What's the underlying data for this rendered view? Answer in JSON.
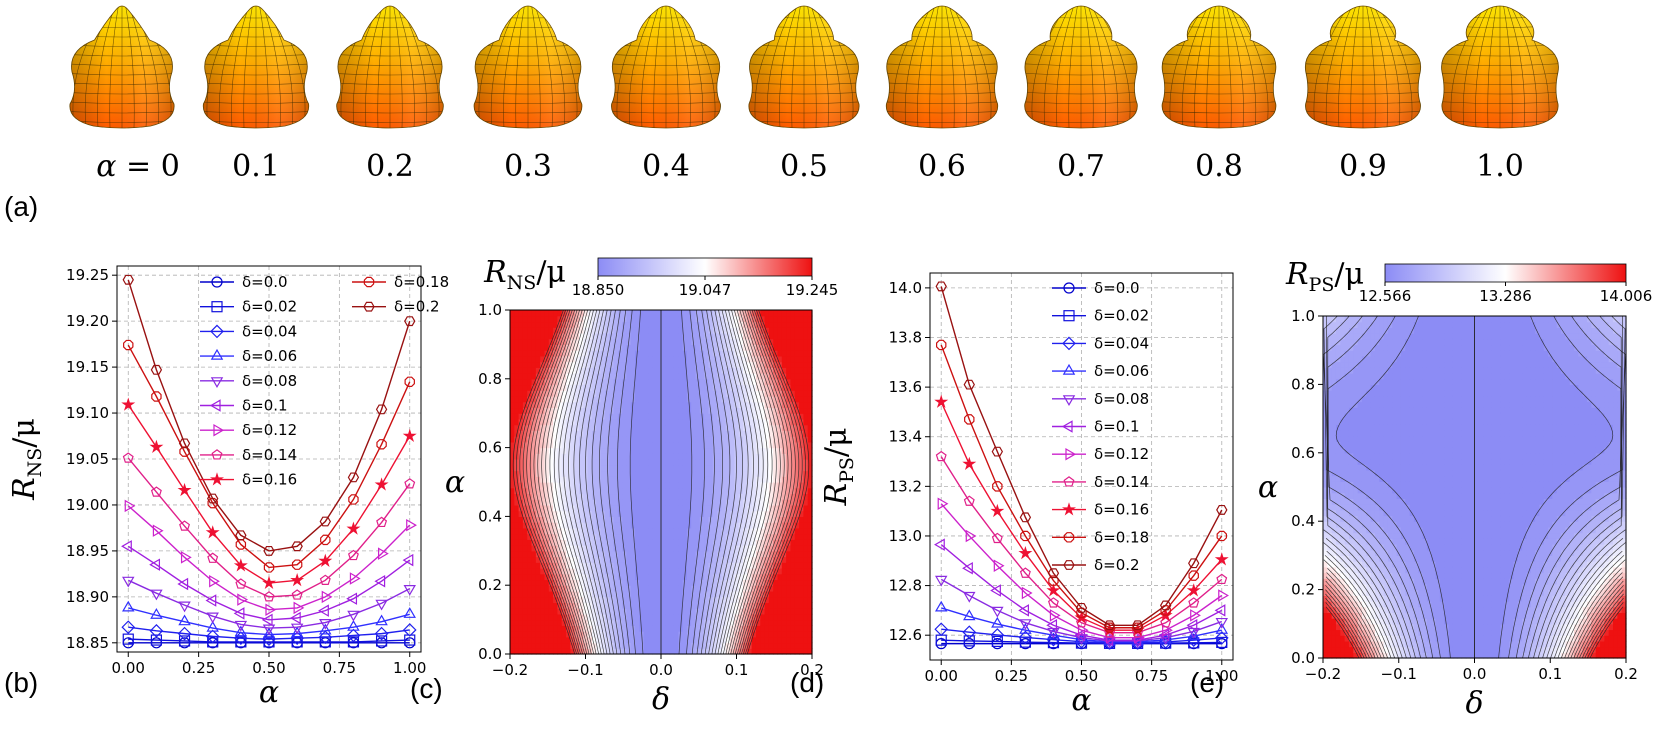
{
  "colors": {
    "shape_top": "#ffe000",
    "shape_mid": "#ffa000",
    "shape_bottom": "#ff5000",
    "map_low": "#8c8cf5",
    "map_mid": "#ffffff",
    "map_high": "#ee1111"
  },
  "shapes": {
    "alpha_prefix": "α = ",
    "labels": [
      "0",
      "0.1",
      "0.2",
      "0.3",
      "0.4",
      "0.5",
      "0.6",
      "0.7",
      "0.8",
      "0.9",
      "1.0"
    ]
  },
  "panel_labels": {
    "a": "(a)",
    "b": "(b)",
    "c": "(c)",
    "d": "(d)",
    "e": "(e)"
  },
  "chart_data": [
    {
      "id": "b",
      "type": "line",
      "xlabel": "α",
      "ylabel": "R_NS/μ",
      "xlim": [
        -0.04,
        1.04
      ],
      "ylim": [
        18.84,
        19.26
      ],
      "xticks": [
        "0.00",
        "0.25",
        "0.50",
        "0.75",
        "1.00"
      ],
      "yticks": [
        "18.85",
        "18.90",
        "18.95",
        "19.00",
        "19.05",
        "19.10",
        "19.15",
        "19.20",
        "19.25"
      ],
      "grid": true,
      "legend_position": "top-center",
      "x": [
        0,
        0.1,
        0.2,
        0.3,
        0.4,
        0.5,
        0.6,
        0.7,
        0.8,
        0.9,
        1.0
      ],
      "series": [
        {
          "name": "δ=0.0",
          "marker": "circle",
          "color": "#0000cc",
          "values": [
            18.85,
            18.85,
            18.85,
            18.85,
            18.85,
            18.85,
            18.85,
            18.85,
            18.85,
            18.85,
            18.85
          ]
        },
        {
          "name": "δ=0.02",
          "marker": "square",
          "color": "#1010dd",
          "values": [
            18.854,
            18.853,
            18.852,
            18.851,
            18.851,
            18.851,
            18.851,
            18.851,
            18.851,
            18.852,
            18.853
          ]
        },
        {
          "name": "δ=0.04",
          "marker": "diamond",
          "color": "#2020ee",
          "values": [
            18.867,
            18.863,
            18.86,
            18.857,
            18.855,
            18.854,
            18.855,
            18.856,
            18.858,
            18.86,
            18.864
          ]
        },
        {
          "name": "δ=0.06",
          "marker": "tri_up",
          "color": "#3030ff",
          "values": [
            18.888,
            18.88,
            18.873,
            18.866,
            18.861,
            18.859,
            18.86,
            18.863,
            18.867,
            18.873,
            18.881
          ]
        },
        {
          "name": "δ=0.08",
          "marker": "tri_down",
          "color": "#8a2be2",
          "values": [
            18.918,
            18.904,
            18.891,
            18.879,
            18.87,
            18.866,
            18.867,
            18.872,
            18.881,
            18.893,
            18.909
          ]
        },
        {
          "name": "δ=0.1",
          "marker": "tri_left",
          "color": "#a020e0",
          "values": [
            18.955,
            18.935,
            18.914,
            18.896,
            18.882,
            18.875,
            18.877,
            18.885,
            18.898,
            18.917,
            18.94
          ]
        },
        {
          "name": "δ=0.12",
          "marker": "tri_right",
          "color": "#cc22cc",
          "values": [
            18.999,
            18.972,
            18.943,
            18.917,
            18.897,
            18.886,
            18.888,
            18.9,
            18.92,
            18.947,
            18.978
          ]
        },
        {
          "name": "δ=0.14",
          "marker": "pentagon",
          "color": "#e0208a",
          "values": [
            19.051,
            19.014,
            18.977,
            18.942,
            18.914,
            18.9,
            18.902,
            18.918,
            18.945,
            18.981,
            19.023
          ]
        },
        {
          "name": "δ=0.16",
          "marker": "star",
          "color": "#ee1133",
          "values": [
            19.109,
            19.063,
            19.016,
            18.97,
            18.934,
            18.915,
            18.918,
            18.939,
            18.974,
            19.022,
            19.075
          ]
        },
        {
          "name": "δ=0.18",
          "marker": "octagon",
          "color": "#cc1111",
          "values": [
            19.174,
            19.118,
            19.058,
            19.002,
            18.957,
            18.932,
            18.935,
            18.962,
            19.006,
            19.066,
            19.134
          ]
        },
        {
          "name": "δ=0.2",
          "marker": "hexagon",
          "color": "#991111",
          "values": [
            19.245,
            19.147,
            19.067,
            19.007,
            18.967,
            18.95,
            18.955,
            18.982,
            19.03,
            19.104,
            19.2
          ]
        }
      ]
    },
    {
      "id": "c",
      "type": "heatmap",
      "title": "R_NS/μ",
      "xlabel": "δ",
      "ylabel": "α",
      "xlim": [
        -0.2,
        0.2
      ],
      "ylim": [
        0.0,
        1.0
      ],
      "xticks": [
        "−0.2",
        "−0.1",
        "0.0",
        "0.1",
        "0.2"
      ],
      "yticks": [
        "0.0",
        "0.2",
        "0.4",
        "0.6",
        "0.8",
        "1.0"
      ],
      "colorbar_ticks": [
        "18.850",
        "19.047",
        "19.245"
      ],
      "colorbar_range": [
        18.85,
        19.245
      ],
      "model": "ns"
    },
    {
      "id": "d",
      "type": "line",
      "xlabel": "α",
      "ylabel": "R_PS/μ",
      "xlim": [
        -0.04,
        1.04
      ],
      "ylim": [
        12.5,
        14.06
      ],
      "xticks": [
        "0.00",
        "0.25",
        "0.50",
        "0.75",
        "1.00"
      ],
      "yticks": [
        "12.6",
        "12.8",
        "13.0",
        "13.2",
        "13.4",
        "13.6",
        "13.8",
        "14.0"
      ],
      "grid": true,
      "legend_position": "top-right",
      "x": [
        0,
        0.1,
        0.2,
        0.3,
        0.4,
        0.5,
        0.6,
        0.7,
        0.8,
        0.9,
        1.0
      ],
      "series": [
        {
          "name": "δ=0.0",
          "marker": "circle",
          "color": "#0000cc",
          "values": [
            12.566,
            12.566,
            12.566,
            12.566,
            12.566,
            12.566,
            12.566,
            12.566,
            12.566,
            12.566,
            12.566
          ]
        },
        {
          "name": "δ=0.02",
          "marker": "square",
          "color": "#1010dd",
          "values": [
            12.58,
            12.577,
            12.575,
            12.572,
            12.57,
            12.568,
            12.567,
            12.567,
            12.568,
            12.569,
            12.571
          ]
        },
        {
          "name": "δ=0.04",
          "marker": "diamond",
          "color": "#2020ee",
          "values": [
            12.624,
            12.612,
            12.601,
            12.591,
            12.582,
            12.574,
            12.569,
            12.569,
            12.573,
            12.58,
            12.589
          ]
        },
        {
          "name": "δ=0.06",
          "marker": "tri_up",
          "color": "#3030ff",
          "values": [
            12.71,
            12.675,
            12.645,
            12.62,
            12.6,
            12.582,
            12.573,
            12.573,
            12.581,
            12.596,
            12.62
          ]
        },
        {
          "name": "δ=0.08",
          "marker": "tri_down",
          "color": "#8a2be2",
          "values": [
            12.825,
            12.76,
            12.7,
            12.65,
            12.615,
            12.59,
            12.577,
            12.577,
            12.59,
            12.615,
            12.655
          ]
        },
        {
          "name": "δ=0.1",
          "marker": "tri_left",
          "color": "#a020e0",
          "values": [
            12.965,
            12.87,
            12.78,
            12.7,
            12.64,
            12.6,
            12.58,
            12.58,
            12.6,
            12.64,
            12.7
          ]
        },
        {
          "name": "δ=0.12",
          "marker": "tri_right",
          "color": "#cc22cc",
          "values": [
            13.13,
            13.0,
            12.88,
            12.77,
            12.68,
            12.62,
            12.59,
            12.59,
            12.62,
            12.68,
            12.76
          ]
        },
        {
          "name": "δ=0.14",
          "marker": "pentagon",
          "color": "#e0208a",
          "values": [
            13.32,
            13.14,
            12.99,
            12.85,
            12.73,
            12.65,
            12.61,
            12.61,
            12.65,
            12.73,
            12.825
          ]
        },
        {
          "name": "δ=0.16",
          "marker": "star",
          "color": "#ee1133",
          "values": [
            13.54,
            13.29,
            13.1,
            12.93,
            12.78,
            12.67,
            12.62,
            12.62,
            12.68,
            12.78,
            12.905
          ]
        },
        {
          "name": "δ=0.18",
          "marker": "octagon",
          "color": "#cc1111",
          "values": [
            13.77,
            13.47,
            13.2,
            13.0,
            12.82,
            12.69,
            12.63,
            12.63,
            12.7,
            12.84,
            13.0
          ]
        },
        {
          "name": "δ=0.2",
          "marker": "hexagon",
          "color": "#991111",
          "values": [
            14.006,
            13.61,
            13.34,
            13.075,
            12.85,
            12.71,
            12.64,
            12.64,
            12.72,
            12.89,
            13.105
          ]
        }
      ]
    },
    {
      "id": "e",
      "type": "heatmap",
      "title": "R_PS/μ",
      "xlabel": "δ",
      "ylabel": "α",
      "xlim": [
        -0.2,
        0.2
      ],
      "ylim": [
        0.0,
        1.0
      ],
      "xticks": [
        "−0.2",
        "−0.1",
        "0.0",
        "0.1",
        "0.2"
      ],
      "yticks": [
        "0.0",
        "0.2",
        "0.4",
        "0.6",
        "0.8",
        "1.0"
      ],
      "colorbar_ticks": [
        "12.566",
        "13.286",
        "14.006"
      ],
      "colorbar_range": [
        12.566,
        14.006
      ],
      "model": "ps"
    }
  ]
}
